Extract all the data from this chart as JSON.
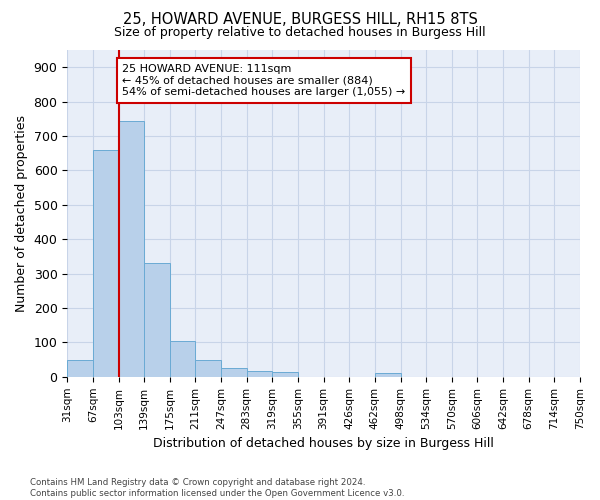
{
  "title1": "25, HOWARD AVENUE, BURGESS HILL, RH15 8TS",
  "title2": "Size of property relative to detached houses in Burgess Hill",
  "xlabel": "Distribution of detached houses by size in Burgess Hill",
  "ylabel": "Number of detached properties",
  "bin_labels": [
    "31sqm",
    "67sqm",
    "103sqm",
    "139sqm",
    "175sqm",
    "211sqm",
    "247sqm",
    "283sqm",
    "319sqm",
    "355sqm",
    "391sqm",
    "426sqm",
    "462sqm",
    "498sqm",
    "534sqm",
    "570sqm",
    "606sqm",
    "642sqm",
    "678sqm",
    "714sqm",
    "750sqm"
  ],
  "bar_heights": [
    50,
    660,
    745,
    330,
    105,
    50,
    25,
    17,
    13,
    0,
    0,
    0,
    10,
    0,
    0,
    0,
    0,
    0,
    0,
    0
  ],
  "bar_color": "#b8d0ea",
  "bar_edge_color": "#6aaad4",
  "subject_line_color": "#cc0000",
  "annotation_text": "25 HOWARD AVENUE: 111sqm\n← 45% of detached houses are smaller (884)\n54% of semi-detached houses are larger (1,055) →",
  "annotation_box_color": "#cc0000",
  "ylim": [
    0,
    950
  ],
  "yticks": [
    0,
    100,
    200,
    300,
    400,
    500,
    600,
    700,
    800,
    900
  ],
  "grid_color": "#c8d4e8",
  "bg_color": "#e8eef8",
  "footer_text": "Contains HM Land Registry data © Crown copyright and database right 2024.\nContains public sector information licensed under the Open Government Licence v3.0."
}
